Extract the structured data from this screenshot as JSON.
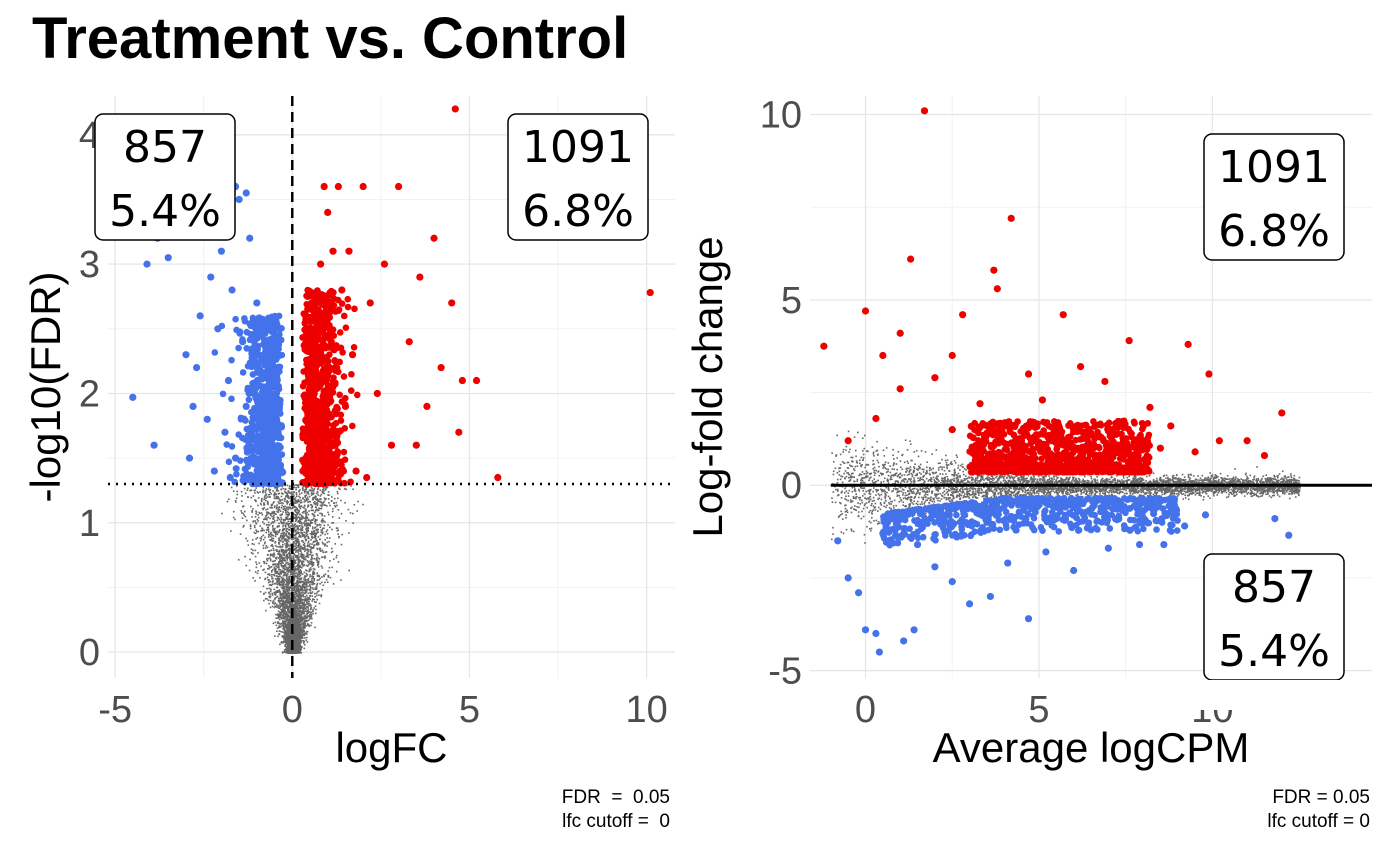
{
  "title": "Treatment vs. Control",
  "colors": {
    "up": "#EE0000",
    "down": "#4472EB",
    "ns": "#666666",
    "grid": "#E6E6E6",
    "tick_label": "#4D4D4D"
  },
  "chart_data": [
    {
      "type": "scatter",
      "name": "volcano",
      "xlabel": "logFC",
      "ylabel": "-log10(FDR)",
      "xlim": [
        -5.2,
        10.8
      ],
      "ylim": [
        -0.2,
        4.3
      ],
      "xticks": [
        -5,
        0,
        5,
        10
      ],
      "xtick_labels": [
        "-5",
        "0",
        "5",
        "10"
      ],
      "yticks": [
        0,
        1,
        2,
        3,
        4
      ],
      "ytick_labels": [
        "0",
        "1",
        "2",
        "3",
        "4"
      ],
      "grid": true,
      "vline_x": 0,
      "hline_y": 1.3,
      "annotations": [
        {
          "count": "857",
          "percent": "5.4%",
          "position": "top-left"
        },
        {
          "count": "1091",
          "percent": "6.8%",
          "position": "top-right"
        }
      ],
      "caption_lines": [
        "FDR  =  0.05",
        "lfc cutoff =  0"
      ],
      "series": [
        {
          "class": "down",
          "points": [
            [
              -4.5,
              1.97
            ],
            [
              -4.1,
              3.0
            ],
            [
              -3.9,
              1.6
            ],
            [
              -3.8,
              3.2
            ],
            [
              -3.5,
              3.05
            ],
            [
              -3.0,
              2.3
            ],
            [
              -2.9,
              1.5
            ],
            [
              -2.8,
              1.9
            ],
            [
              -2.7,
              2.2
            ],
            [
              -2.6,
              2.6
            ],
            [
              -2.5,
              3.3
            ],
            [
              -2.4,
              1.8
            ],
            [
              -2.3,
              2.9
            ],
            [
              -2.2,
              1.4
            ],
            [
              -2.1,
              2.5
            ],
            [
              -2.0,
              3.1
            ],
            [
              -1.9,
              1.7
            ],
            [
              -1.8,
              2.1
            ],
            [
              -1.7,
              2.8
            ],
            [
              -1.6,
              1.5
            ],
            [
              -1.5,
              3.5
            ],
            [
              -1.4,
              2.4
            ],
            [
              -1.3,
              1.9
            ],
            [
              -1.2,
              3.2
            ],
            [
              -1.1,
              2.0
            ],
            [
              -1.0,
              2.7
            ],
            [
              -0.9,
              1.6
            ],
            [
              -0.8,
              2.3
            ],
            [
              -0.7,
              1.8
            ],
            [
              -0.6,
              2.1
            ],
            [
              -0.5,
              1.5
            ],
            [
              -0.4,
              1.7
            ],
            [
              -0.3,
              1.4
            ],
            [
              -1.6,
              3.6
            ],
            [
              -1.3,
              3.55
            ],
            [
              -2.6,
              3.35
            ],
            [
              -1.75,
              1.35
            ],
            [
              -0.35,
              2.5
            ]
          ]
        },
        {
          "class": "up",
          "points": [
            [
              0.3,
              1.4
            ],
            [
              0.4,
              1.8
            ],
            [
              0.5,
              2.2
            ],
            [
              0.6,
              2.6
            ],
            [
              0.7,
              1.6
            ],
            [
              0.8,
              3.0
            ],
            [
              0.9,
              2.0
            ],
            [
              1.0,
              3.4
            ],
            [
              1.1,
              2.4
            ],
            [
              1.2,
              1.5
            ],
            [
              1.3,
              3.6
            ],
            [
              1.4,
              2.8
            ],
            [
              1.5,
              1.9
            ],
            [
              1.6,
              3.1
            ],
            [
              1.7,
              2.3
            ],
            [
              1.8,
              1.4
            ],
            [
              2.0,
              3.6
            ],
            [
              2.2,
              2.7
            ],
            [
              2.4,
              2.0
            ],
            [
              2.6,
              3.0
            ],
            [
              2.8,
              1.6
            ],
            [
              3.0,
              3.6
            ],
            [
              3.3,
              2.4
            ],
            [
              3.6,
              2.9
            ],
            [
              3.8,
              1.9
            ],
            [
              4.0,
              3.2
            ],
            [
              4.2,
              2.2
            ],
            [
              4.5,
              2.7
            ],
            [
              4.6,
              4.2
            ],
            [
              4.7,
              1.7
            ],
            [
              4.8,
              2.1
            ],
            [
              5.2,
              2.1
            ],
            [
              5.8,
              1.35
            ],
            [
              6.2,
              3.3
            ],
            [
              7.1,
              3.3
            ],
            [
              10.1,
              2.78
            ],
            [
              0.9,
              3.6
            ],
            [
              1.15,
              3.1
            ],
            [
              2.1,
              1.35
            ],
            [
              3.5,
              1.6
            ]
          ]
        }
      ],
      "ns_extent": {
        "x": [
          -2.2,
          2.5
        ],
        "y": [
          0,
          1.3
        ]
      }
    },
    {
      "type": "scatter",
      "name": "ma-plot",
      "xlabel": "Average logCPM",
      "ylabel": "Log-fold change",
      "xlim": [
        -1.6,
        14.6
      ],
      "ylim": [
        -5.2,
        10.5
      ],
      "xticks": [
        0,
        5,
        10
      ],
      "xtick_labels": [
        "0",
        "5",
        "10"
      ],
      "yticks": [
        -5,
        0,
        5,
        10
      ],
      "ytick_labels": [
        "-5",
        "0",
        "5",
        "10"
      ],
      "grid": true,
      "hline_y": 0,
      "annotations": [
        {
          "count": "1091",
          "percent": "6.8%",
          "position": "top-right"
        },
        {
          "count": "857",
          "percent": "5.4%",
          "position": "bottom-right"
        }
      ],
      "caption_lines": [
        "FDR = 0.05",
        "lfc cutoff = 0"
      ],
      "series": [
        {
          "class": "up",
          "points": [
            [
              -1.2,
              3.75
            ],
            [
              0.0,
              4.7
            ],
            [
              0.5,
              3.5
            ],
            [
              1.0,
              4.1
            ],
            [
              1.3,
              6.1
            ],
            [
              1.7,
              10.1
            ],
            [
              2.0,
              2.9
            ],
            [
              2.5,
              3.5
            ],
            [
              2.8,
              4.6
            ],
            [
              3.3,
              2.2
            ],
            [
              3.7,
              5.8
            ],
            [
              3.8,
              5.3
            ],
            [
              4.2,
              7.2
            ],
            [
              4.7,
              3.0
            ],
            [
              5.1,
              2.3
            ],
            [
              5.7,
              4.6
            ],
            [
              6.2,
              3.2
            ],
            [
              6.9,
              2.8
            ],
            [
              7.6,
              3.9
            ],
            [
              8.2,
              2.1
            ],
            [
              8.8,
              1.6
            ],
            [
              9.3,
              3.8
            ],
            [
              9.9,
              3.0
            ],
            [
              10.2,
              1.2
            ],
            [
              11.0,
              1.2
            ],
            [
              12.0,
              1.95
            ],
            [
              0.3,
              1.8
            ],
            [
              1.0,
              2.6
            ],
            [
              2.5,
              1.5
            ],
            [
              3.5,
              1.4
            ],
            [
              4.5,
              1.0
            ],
            [
              5.5,
              1.3
            ],
            [
              6.5,
              0.9
            ],
            [
              7.5,
              1.1
            ],
            [
              8.5,
              1.0
            ],
            [
              9.5,
              0.9
            ],
            [
              11.5,
              0.8
            ],
            [
              -0.5,
              1.2
            ]
          ]
        },
        {
          "class": "down",
          "points": [
            [
              -0.8,
              -1.5
            ],
            [
              -0.5,
              -2.5
            ],
            [
              -0.2,
              -2.9
            ],
            [
              0.0,
              -3.9
            ],
            [
              0.3,
              -4.0
            ],
            [
              0.4,
              -4.5
            ],
            [
              1.1,
              -4.2
            ],
            [
              1.4,
              -3.9
            ],
            [
              2.0,
              -2.2
            ],
            [
              2.5,
              -2.6
            ],
            [
              3.0,
              -3.2
            ],
            [
              3.6,
              -3.0
            ],
            [
              4.1,
              -2.1
            ],
            [
              4.7,
              -3.6
            ],
            [
              5.2,
              -1.8
            ],
            [
              6.0,
              -2.3
            ],
            [
              7.0,
              -1.7
            ],
            [
              7.9,
              -1.6
            ],
            [
              8.6,
              -1.6
            ],
            [
              9.2,
              -1.1
            ],
            [
              11.8,
              -0.9
            ],
            [
              12.2,
              -1.35
            ],
            [
              0.5,
              -1.3
            ],
            [
              1.5,
              -1.6
            ],
            [
              3.5,
              -1.0
            ],
            [
              5.5,
              -0.9
            ],
            [
              6.5,
              -1.2
            ],
            [
              8.0,
              -0.7
            ],
            [
              9.8,
              -0.8
            ]
          ]
        }
      ],
      "ns_extent": {
        "x": [
          -1.0,
          12.5
        ],
        "y": [
          -0.8,
          0.8
        ]
      }
    }
  ]
}
